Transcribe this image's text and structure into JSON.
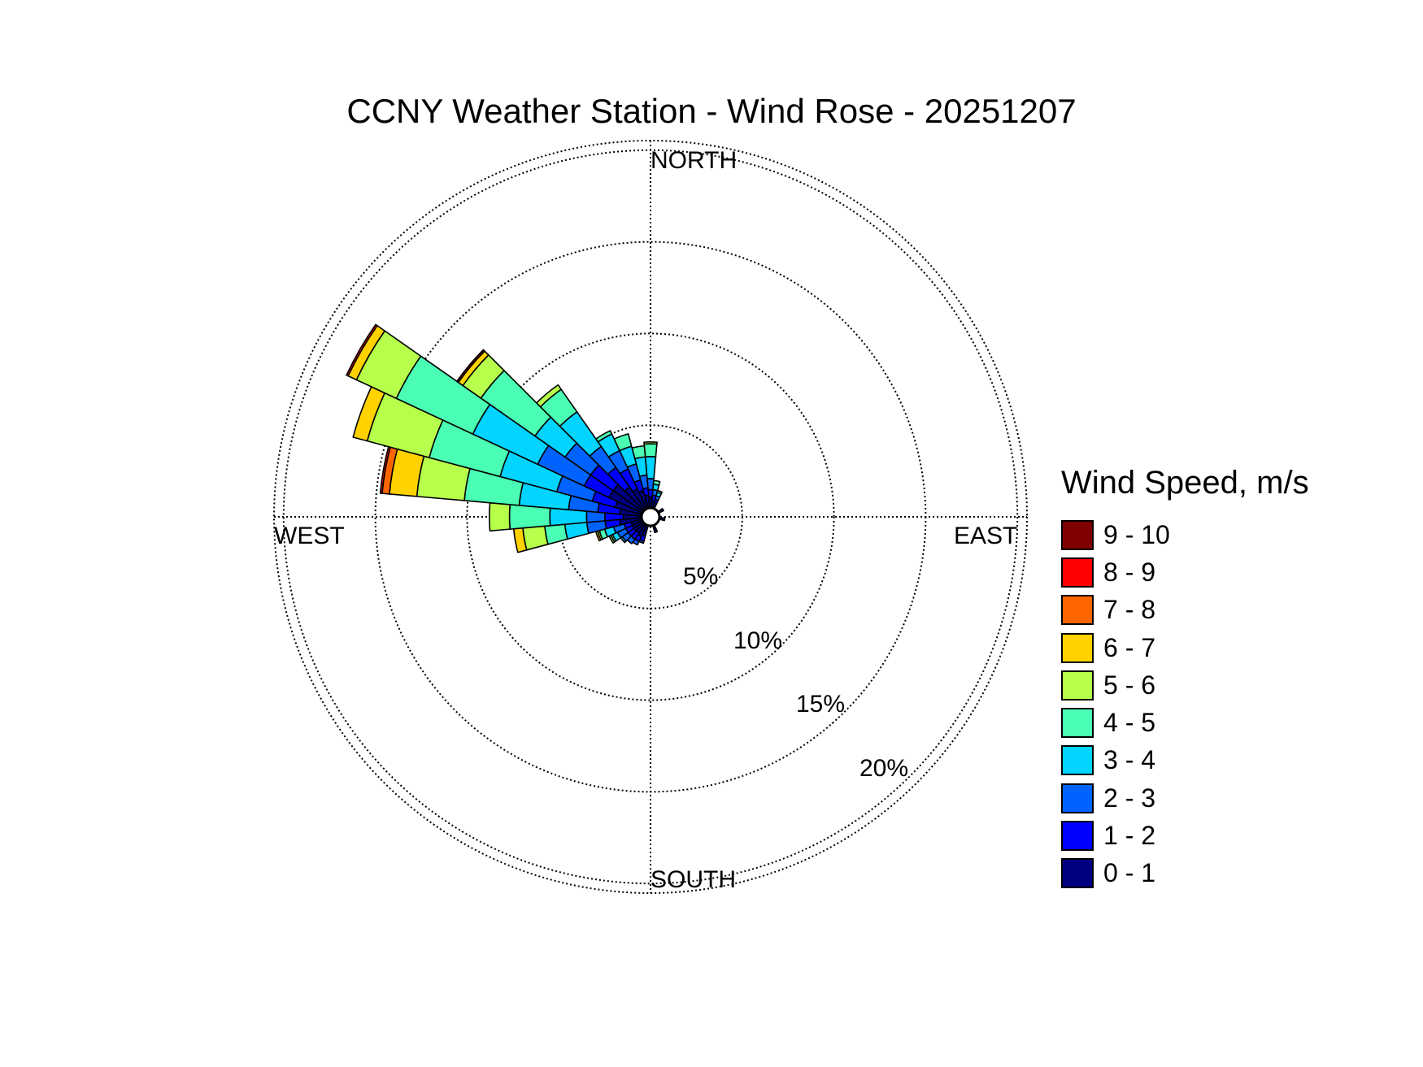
{
  "chart_data": {
    "type": "wind-rose",
    "title": "CCNY Weather Station - Wind Rose - 20251207",
    "directions": {
      "north": "NORTH",
      "south": "SOUTH",
      "east": "EAST",
      "west": "WEST"
    },
    "ring_labels": [
      "5%",
      "10%",
      "15%",
      "20%"
    ],
    "ring_values": [
      5,
      10,
      15,
      20
    ],
    "rlim": [
      0,
      21
    ],
    "grid": "dotted",
    "legend": {
      "title": "Wind Speed, m/s",
      "placement": "right",
      "bins": [
        {
          "label": "9 - 10",
          "color": "#7f0000"
        },
        {
          "label": "8 - 9",
          "color": "#ff0000"
        },
        {
          "label": "7 - 8",
          "color": "#ff6600"
        },
        {
          "label": "6 - 7",
          "color": "#ffd200"
        },
        {
          "label": "5 - 6",
          "color": "#b6ff4a"
        },
        {
          "label": "4 - 5",
          "color": "#4affb3"
        },
        {
          "label": "3 - 4",
          "color": "#00d4ff"
        },
        {
          "label": "2 - 3",
          "color": "#0063ff"
        },
        {
          "label": "1 - 2",
          "color": "#0000ff"
        },
        {
          "label": "0 - 1",
          "color": "#000080"
        }
      ]
    },
    "speed_bins": [
      "0 - 1",
      "1 - 2",
      "2 - 3",
      "3 - 4",
      "4 - 5",
      "5 - 6",
      "6 - 7",
      "7 - 8",
      "8 - 9",
      "9 - 10"
    ],
    "sectors": [
      {
        "direction_deg": 0,
        "cumulative_percent": [
          0.6,
          1.0,
          1.6,
          2.8,
          3.5,
          3.6,
          3.6,
          3.6,
          3.6,
          3.6
        ]
      },
      {
        "direction_deg": 10,
        "cumulative_percent": [
          0.4,
          0.7,
          1.0,
          1.3,
          1.5,
          1.5,
          1.5,
          1.5,
          1.5,
          1.5
        ]
      },
      {
        "direction_deg": 20,
        "cumulative_percent": [
          0.3,
          0.5,
          0.7,
          0.9,
          1.0,
          1.0,
          1.0,
          1.0,
          1.0,
          1.0
        ]
      },
      {
        "direction_deg": 60,
        "cumulative_percent": [
          0.2,
          0.3,
          0.3,
          0.3,
          0.3,
          0.3,
          0.3,
          0.3,
          0.3,
          0.3
        ]
      },
      {
        "direction_deg": 100,
        "cumulative_percent": [
          0.2,
          0.3,
          0.3,
          0.3,
          0.3,
          0.3,
          0.3,
          0.3,
          0.3,
          0.3
        ]
      },
      {
        "direction_deg": 160,
        "cumulative_percent": [
          0.3,
          0.4,
          0.4,
          0.4,
          0.4,
          0.4,
          0.4,
          0.4,
          0.4,
          0.4
        ]
      },
      {
        "direction_deg": 200,
        "cumulative_percent": [
          0.6,
          0.9,
          1.0,
          1.0,
          1.0,
          1.0,
          1.0,
          1.0,
          1.0,
          1.0
        ]
      },
      {
        "direction_deg": 210,
        "cumulative_percent": [
          0.7,
          1.0,
          1.2,
          1.2,
          1.2,
          1.2,
          1.2,
          1.2,
          1.2,
          1.2
        ]
      },
      {
        "direction_deg": 220,
        "cumulative_percent": [
          0.6,
          1.0,
          1.3,
          1.3,
          1.3,
          1.3,
          1.3,
          1.3,
          1.3,
          1.3
        ]
      },
      {
        "direction_deg": 230,
        "cumulative_percent": [
          0.6,
          1.0,
          1.4,
          1.5,
          1.5,
          1.5,
          1.5,
          1.5,
          1.5,
          1.5
        ]
      },
      {
        "direction_deg": 240,
        "cumulative_percent": [
          0.6,
          1.0,
          1.5,
          1.8,
          1.9,
          2.0,
          2.0,
          2.0,
          2.0,
          2.0
        ]
      },
      {
        "direction_deg": 250,
        "cumulative_percent": [
          0.6,
          1.0,
          1.6,
          2.1,
          2.4,
          2.5,
          2.6,
          2.6,
          2.6,
          2.6
        ]
      },
      {
        "direction_deg": 260,
        "cumulative_percent": [
          1.2,
          2.0,
          3.0,
          4.2,
          5.3,
          6.5,
          7.0,
          7.0,
          7.0,
          7.0
        ]
      },
      {
        "direction_deg": 270,
        "cumulative_percent": [
          1.0,
          2.0,
          3.0,
          5.0,
          7.2,
          8.3,
          8.3,
          8.3,
          8.3,
          8.3
        ]
      },
      {
        "direction_deg": 280,
        "cumulative_percent": [
          1.2,
          2.4,
          4.0,
          6.7,
          9.7,
          12.3,
          13.8,
          14.2,
          14.3,
          14.3
        ]
      },
      {
        "direction_deg": 290,
        "cumulative_percent": [
          1.5,
          2.8,
          4.8,
          8.0,
          12.0,
          15.5,
          16.3,
          16.3,
          16.3,
          16.3
        ]
      },
      {
        "direction_deg": 300,
        "cumulative_percent": [
          2.0,
          3.5,
          6.3,
          10.2,
          14.8,
          17.2,
          17.7,
          17.7,
          17.8,
          17.8
        ]
      },
      {
        "direction_deg": 310,
        "cumulative_percent": [
          2.0,
          3.5,
          5.2,
          7.2,
          10.8,
          12.0,
          12.3,
          12.3,
          12.3,
          12.4
        ]
      },
      {
        "direction_deg": 320,
        "cumulative_percent": [
          1.5,
          2.8,
          4.2,
          6.5,
          8.0,
          8.3,
          8.3,
          8.3,
          8.3,
          8.3
        ]
      },
      {
        "direction_deg": 330,
        "cumulative_percent": [
          1.2,
          2.4,
          3.5,
          4.5,
          4.7,
          4.7,
          4.7,
          4.7,
          4.7,
          4.7
        ]
      },
      {
        "direction_deg": 340,
        "cumulative_percent": [
          1.0,
          1.6,
          2.5,
          3.5,
          4.2,
          4.2,
          4.2,
          4.2,
          4.2,
          4.2
        ]
      },
      {
        "direction_deg": 350,
        "cumulative_percent": [
          0.7,
          1.1,
          1.8,
          2.8,
          3.4,
          3.4,
          3.4,
          3.4,
          3.4,
          3.4
        ]
      }
    ]
  }
}
